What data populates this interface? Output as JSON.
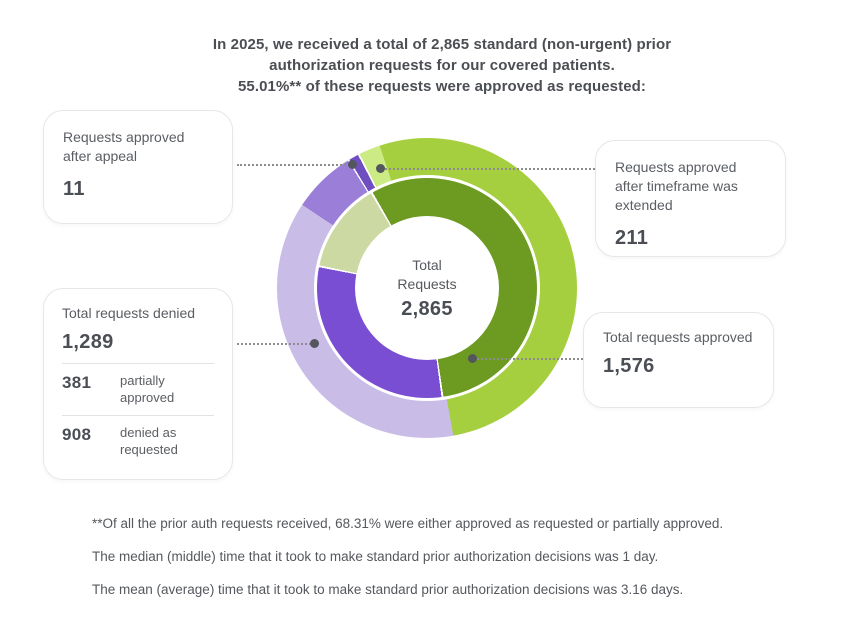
{
  "title": {
    "lines": [
      "In 2025, we received a total of 2,865 standard (non-urgent) prior",
      "authorization requests for our covered patients.",
      "55.01%** of these requests were approved as requested:"
    ]
  },
  "donut": {
    "center": {
      "line1": "Total",
      "line2": "Requests",
      "value": "2,865"
    },
    "outer_segments": [
      {
        "label": "total-approved",
        "color": "#a5cf3f",
        "from": 0,
        "to": 169.9
      },
      {
        "label": "total-denied",
        "color": "#c9bce7",
        "from": 169.9,
        "to": 303.7
      },
      {
        "label": "partially-approved",
        "color": "#9a7ed8",
        "from": 303.7,
        "to": 328.2
      },
      {
        "label": "separator",
        "color": "#ffffff",
        "from": 328.2,
        "to": 328.8
      },
      {
        "label": "approved-after-appeal",
        "color": "#6f4fc0",
        "from": 328.8,
        "to": 332.6
      },
      {
        "label": "separator",
        "color": "#ffffff",
        "from": 332.6,
        "to": 333.3
      },
      {
        "label": "approved-after-timeframe-extended",
        "color": "#cdeb84",
        "from": 333.3,
        "to": 341.6
      },
      {
        "label": "total-approved",
        "color": "#a5cf3f",
        "from": 341.6,
        "to": 360
      }
    ],
    "inner_segments": [
      {
        "label": "approved",
        "color": "#6d9b21",
        "from": 0,
        "to": 171.4
      },
      {
        "label": "separator",
        "color": "#ffffff",
        "from": 171.4,
        "to": 172.4
      },
      {
        "label": "denied-as-requested",
        "color": "#7a4ed2",
        "from": 172.4,
        "to": 280.9
      },
      {
        "label": "separator",
        "color": "#ffffff",
        "from": 280.9,
        "to": 281.9
      },
      {
        "label": "partially-approved",
        "color": "#ccd9a3",
        "from": 281.9,
        "to": 329.3
      },
      {
        "label": "separator",
        "color": "#ffffff",
        "from": 329.3,
        "to": 330.4
      },
      {
        "label": "approved",
        "color": "#6d9b21",
        "from": 330.4,
        "to": 360
      }
    ]
  },
  "callouts": {
    "appeal": {
      "label": "Requests approved after appeal",
      "value": "11"
    },
    "timeframe": {
      "label": "Requests approved after timeframe was extended",
      "value": "211"
    },
    "denied": {
      "label": "Total requests denied",
      "value": "1,289",
      "rows": [
        {
          "value": "381",
          "label": "partially approved"
        },
        {
          "value": "908",
          "label": "denied as requested"
        }
      ]
    },
    "approved": {
      "label": "Total requests approved",
      "value": "1,576"
    }
  },
  "footnotes": [
    "**Of all the prior auth requests received, 68.31% were either approved as requested or partially approved.",
    "The median (middle) time that it took to make standard prior authorization decisions was 1 day.",
    "The mean (average) time that it took to make standard prior authorization decisions was 3.16 days."
  ],
  "chart_data": {
    "type": "pie",
    "title": "Total Requests 2,865",
    "total": 2865,
    "year": "2025",
    "approved_as_requested_pct": "55.01%",
    "approved_or_partially_approved_pct": "68.31%",
    "median_decision_time": "1 day",
    "mean_decision_time": "3.16 days",
    "rings": [
      {
        "ring": "inner",
        "slices": [
          {
            "label": "Total requests approved",
            "value": 1576,
            "color": "#6d9b21"
          },
          {
            "label": "Denied as requested",
            "value": 908,
            "color": "#7a4ed2"
          },
          {
            "label": "Partially approved",
            "value": 381,
            "color": "#ccd9a3"
          }
        ]
      },
      {
        "ring": "outer",
        "slices": [
          {
            "label": "Total requests approved",
            "value": 1576,
            "color": "#a5cf3f"
          },
          {
            "label": "Total requests denied",
            "value": 1289,
            "color": "#c9bce7"
          },
          {
            "label": "Requests approved after appeal",
            "value": 11,
            "color": "#6f4fc0"
          },
          {
            "label": "Requests approved after timeframe was extended",
            "value": 211,
            "color": "#cdeb84"
          }
        ]
      }
    ],
    "legend_position": "callout-boxes",
    "grid": false
  }
}
